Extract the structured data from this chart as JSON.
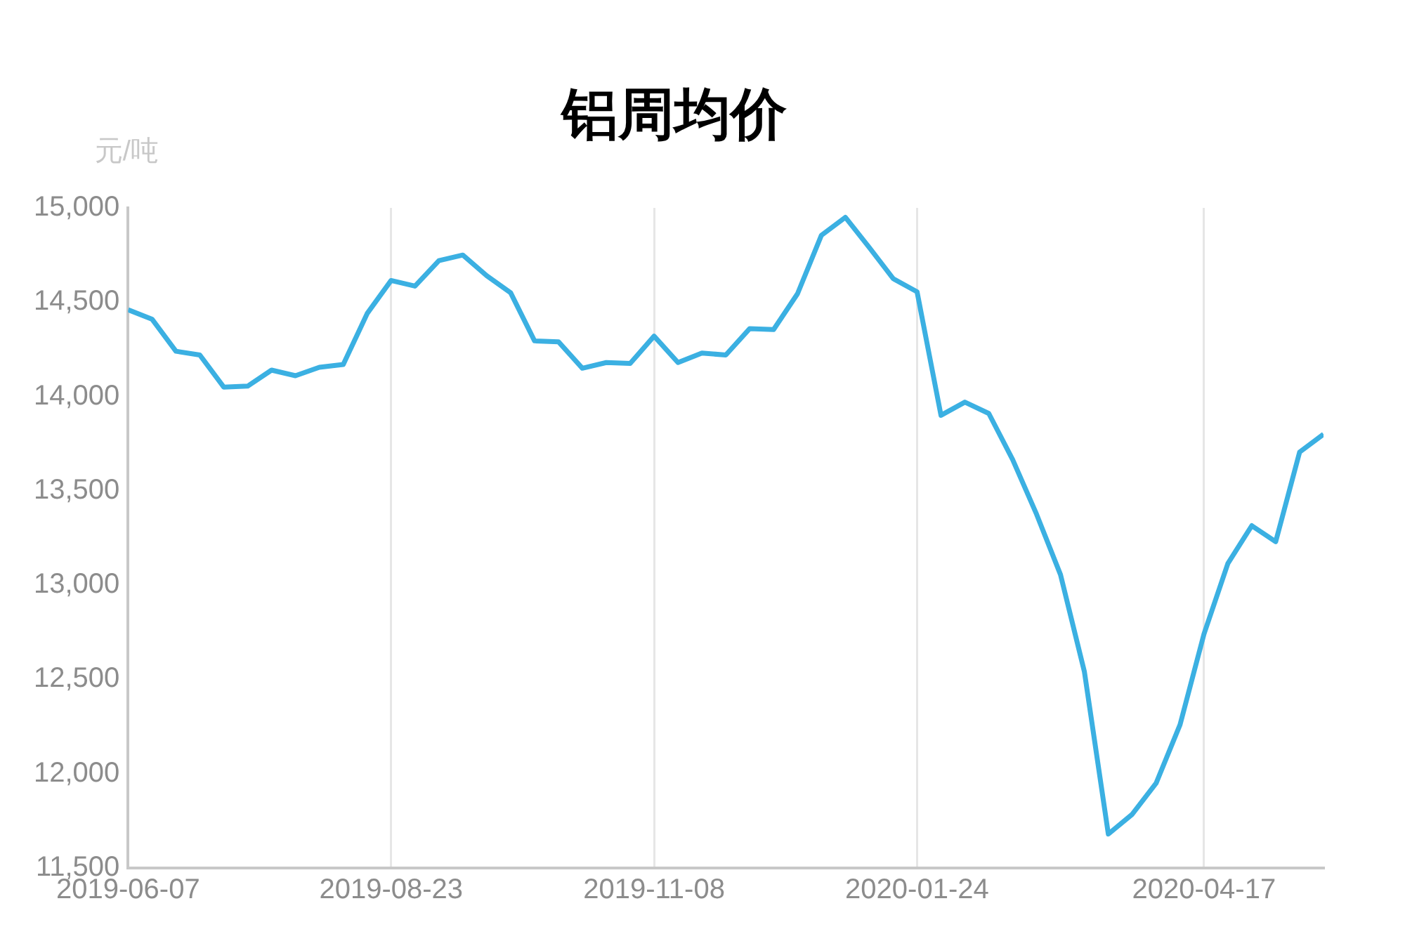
{
  "chart_data": {
    "type": "line",
    "title": "铝周均价",
    "ylabel": "元/吨",
    "x": [
      "2019-06-07",
      "2019-06-14",
      "2019-06-21",
      "2019-06-28",
      "2019-07-05",
      "2019-07-12",
      "2019-07-19",
      "2019-07-26",
      "2019-08-02",
      "2019-08-09",
      "2019-08-16",
      "2019-08-23",
      "2019-08-30",
      "2019-09-06",
      "2019-09-13",
      "2019-09-20",
      "2019-09-27",
      "2019-10-04",
      "2019-10-11",
      "2019-10-18",
      "2019-10-25",
      "2019-11-01",
      "2019-11-08",
      "2019-11-15",
      "2019-11-22",
      "2019-11-29",
      "2019-12-06",
      "2019-12-13",
      "2019-12-20",
      "2019-12-27",
      "2020-01-03",
      "2020-01-10",
      "2020-01-17",
      "2020-01-24",
      "2020-01-31",
      "2020-02-07",
      "2020-02-14",
      "2020-02-21",
      "2020-02-28",
      "2020-03-06",
      "2020-03-13",
      "2020-03-20",
      "2020-03-27",
      "2020-04-03",
      "2020-04-10",
      "2020-04-17",
      "2020-04-24",
      "2020-05-01",
      "2020-05-08",
      "2020-05-15",
      "2020-05-22"
    ],
    "series": [
      {
        "color": "#3bb0e2",
        "values": [
          14460,
          14410,
          14240,
          14220,
          14050,
          14055,
          14140,
          14110,
          14155,
          14170,
          14440,
          14615,
          14585,
          14720,
          14750,
          14640,
          14550,
          14295,
          14290,
          14150,
          14180,
          14175,
          14320,
          14180,
          14230,
          14220,
          14360,
          14355,
          14545,
          14855,
          14950,
          14790,
          14625,
          14555,
          13900,
          13970,
          13910,
          13665,
          13375,
          13055,
          12540,
          11680,
          11785,
          11950,
          12260,
          12740,
          13115,
          13315,
          13230,
          13705,
          13800
        ]
      }
    ],
    "xlim": [
      "2019-06-07",
      "2020-05-22"
    ],
    "xticks": [
      "2019-06-07",
      "2019-08-23",
      "2019-11-08",
      "2020-01-24",
      "2020-04-17"
    ],
    "ylim": [
      11500,
      15000
    ],
    "yticks": [
      {
        "value": 11500,
        "label": "11,500"
      },
      {
        "value": 12000,
        "label": "12,000"
      },
      {
        "value": 12500,
        "label": "12,500"
      },
      {
        "value": 13000,
        "label": "13,000"
      },
      {
        "value": 13500,
        "label": "13,500"
      },
      {
        "value": 14000,
        "label": "14,000"
      },
      {
        "value": 14500,
        "label": "14,500"
      },
      {
        "value": 15000,
        "label": "15,000"
      }
    ],
    "grid": "x",
    "legend": false,
    "marker": "none",
    "line_style": "solid"
  }
}
